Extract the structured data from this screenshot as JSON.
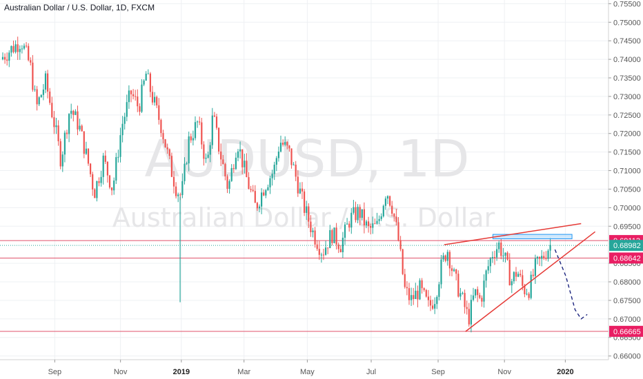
{
  "header": {
    "title": "Australian Dollar / U.S. Dollar, 1D, FXCM"
  },
  "watermark": {
    "symbol": "AUDUSD, 1D",
    "description": "Australian Dollar / U.S. Dollar"
  },
  "colors": {
    "up": "#26a69a",
    "down": "#ef5350",
    "line": "#e53935",
    "hline": "#e0526b",
    "box_fill": "#bbdefb",
    "box_stroke": "#2196f3",
    "arrow": "#1a237e",
    "price_tag": "#e91e63",
    "current_tag": "#26a69a"
  },
  "chart_data": {
    "type": "candlestick",
    "symbol": "AUDUSD",
    "interval": "1D",
    "source": "FXCM",
    "y_axis": {
      "min": 0.659,
      "max": 0.756,
      "ticks": [
        "0.75500",
        "0.75000",
        "0.74500",
        "0.74000",
        "0.73500",
        "0.73000",
        "0.72500",
        "0.72000",
        "0.71500",
        "0.71000",
        "0.70500",
        "0.70000",
        "0.69500",
        "0.68500",
        "0.68000",
        "0.67500",
        "0.67000",
        "0.66500",
        "0.66000"
      ]
    },
    "x_axis": {
      "ticks": [
        {
          "label": "Sep",
          "pos": 0.09
        },
        {
          "label": "Nov",
          "pos": 0.198
        },
        {
          "label": "2019",
          "pos": 0.298,
          "bold": true
        },
        {
          "label": "Mar",
          "pos": 0.401
        },
        {
          "label": "May",
          "pos": 0.505
        },
        {
          "label": "Jul",
          "pos": 0.61
        },
        {
          "label": "Sep",
          "pos": 0.72
        },
        {
          "label": "Nov",
          "pos": 0.829
        },
        {
          "label": "2020",
          "pos": 0.929,
          "bold": true
        }
      ]
    },
    "price_path": [
      [
        0.0,
        0.74
      ],
      [
        0.02,
        0.743
      ],
      [
        0.035,
        0.745
      ],
      [
        0.05,
        0.738
      ],
      [
        0.06,
        0.727
      ],
      [
        0.075,
        0.734
      ],
      [
        0.09,
        0.722
      ],
      [
        0.1,
        0.713
      ],
      [
        0.115,
        0.727
      ],
      [
        0.13,
        0.722
      ],
      [
        0.145,
        0.712
      ],
      [
        0.155,
        0.704
      ],
      [
        0.17,
        0.713
      ],
      [
        0.185,
        0.705
      ],
      [
        0.2,
        0.722
      ],
      [
        0.215,
        0.731
      ],
      [
        0.228,
        0.727
      ],
      [
        0.24,
        0.736
      ],
      [
        0.25,
        0.73
      ],
      [
        0.265,
        0.722
      ],
      [
        0.28,
        0.711
      ],
      [
        0.29,
        0.705
      ],
      [
        0.298,
        0.703
      ],
      [
        0.31,
        0.718
      ],
      [
        0.325,
        0.723
      ],
      [
        0.34,
        0.711
      ],
      [
        0.35,
        0.725
      ],
      [
        0.36,
        0.716
      ],
      [
        0.375,
        0.705
      ],
      [
        0.39,
        0.718
      ],
      [
        0.405,
        0.708
      ],
      [
        0.42,
        0.7
      ],
      [
        0.435,
        0.706
      ],
      [
        0.45,
        0.71
      ],
      [
        0.46,
        0.718
      ],
      [
        0.475,
        0.715
      ],
      [
        0.49,
        0.706
      ],
      [
        0.5,
        0.7
      ],
      [
        0.515,
        0.693
      ],
      [
        0.53,
        0.688
      ],
      [
        0.545,
        0.693
      ],
      [
        0.56,
        0.69
      ],
      [
        0.575,
        0.697
      ],
      [
        0.59,
        0.699
      ],
      [
        0.605,
        0.694
      ],
      [
        0.62,
        0.695
      ],
      [
        0.635,
        0.705
      ],
      [
        0.645,
        0.7
      ],
      [
        0.655,
        0.691
      ],
      [
        0.665,
        0.678
      ],
      [
        0.675,
        0.675
      ],
      [
        0.69,
        0.678
      ],
      [
        0.705,
        0.673
      ],
      [
        0.715,
        0.676
      ],
      [
        0.725,
        0.684
      ],
      [
        0.735,
        0.689
      ],
      [
        0.745,
        0.682
      ],
      [
        0.76,
        0.675
      ],
      [
        0.77,
        0.67
      ],
      [
        0.78,
        0.677
      ],
      [
        0.79,
        0.675
      ],
      [
        0.8,
        0.683
      ],
      [
        0.81,
        0.688
      ],
      [
        0.82,
        0.69
      ],
      [
        0.83,
        0.686
      ],
      [
        0.84,
        0.68
      ],
      [
        0.85,
        0.683
      ],
      [
        0.86,
        0.678
      ],
      [
        0.87,
        0.678
      ],
      [
        0.88,
        0.684
      ],
      [
        0.89,
        0.686
      ],
      [
        0.9,
        0.689
      ],
      [
        0.905,
        0.69
      ]
    ],
    "spike": {
      "pos": 0.296,
      "low": 0.6745,
      "high": 0.703
    },
    "horizontal_lines": [
      0.69113,
      0.68642,
      0.66665
    ],
    "current_price": 0.68982,
    "price_tags": [
      {
        "label": "0.69113",
        "value": 0.69113,
        "kind": "level"
      },
      {
        "label": "0.68982",
        "value": 0.68982,
        "kind": "current"
      },
      {
        "label": "0.68642",
        "value": 0.68642,
        "kind": "level"
      },
      {
        "label": "0.66665",
        "value": 0.66665,
        "kind": "level"
      }
    ],
    "resistance_box": {
      "x0": 0.81,
      "x1": 0.94,
      "y0": 0.6916,
      "y1": 0.6928
    },
    "trend_lines": [
      {
        "x0": 0.73,
        "y0": 0.69,
        "x1": 0.955,
        "y1": 0.6957
      },
      {
        "x0": 0.765,
        "y0": 0.6666,
        "x1": 0.978,
        "y1": 0.6935
      }
    ],
    "projection": [
      [
        0.912,
        0.6887
      ],
      [
        0.93,
        0.6815
      ],
      [
        0.945,
        0.6725
      ],
      [
        0.955,
        0.67
      ],
      [
        0.965,
        0.6712
      ]
    ]
  }
}
